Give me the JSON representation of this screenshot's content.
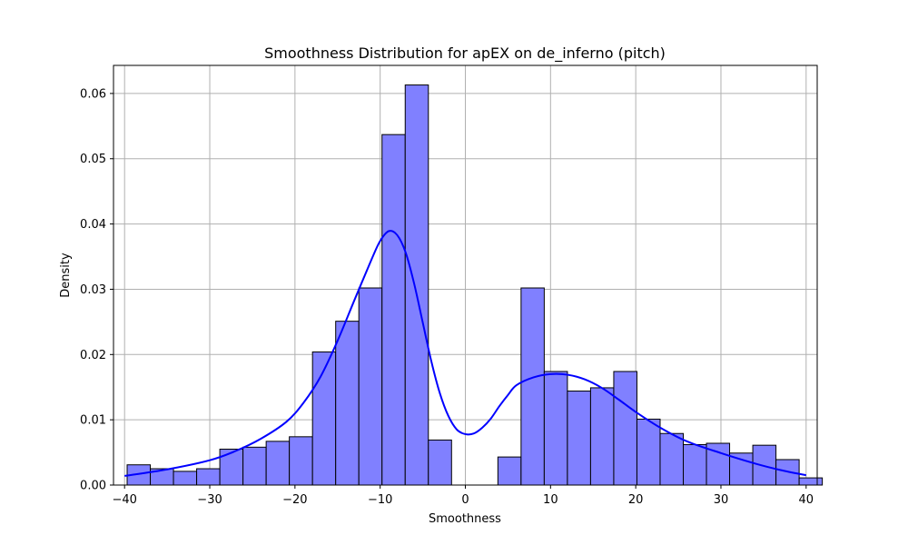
{
  "chart_data": {
    "type": "bar",
    "title": "Smoothness Distribution for apEX on de_inferno (pitch)",
    "xlabel": "Smoothness",
    "ylabel": "Density",
    "xlim": [
      -41.3,
      41.3
    ],
    "ylim": [
      0,
      0.0643
    ],
    "grid": true,
    "x_ticks": [
      -40,
      -30,
      -20,
      -10,
      0,
      10,
      20,
      30,
      40
    ],
    "x_tick_labels": [
      "−40",
      "−30",
      "−20",
      "−10",
      "0",
      "10",
      "20",
      "30",
      "40"
    ],
    "y_ticks": [
      0,
      0.01,
      0.02,
      0.03,
      0.04,
      0.05,
      0.06
    ],
    "y_tick_labels": [
      "0.00",
      "0.01",
      "0.02",
      "0.03",
      "0.04",
      "0.05",
      "0.06"
    ],
    "colors": {
      "bar_fill": "#8080ff",
      "bar_edge": "#000000",
      "kde": "#0000ff",
      "grid": "#b0b0b0"
    },
    "histogram": {
      "bin_start": -39.7,
      "bin_width": 2.72,
      "densities": [
        0.0031,
        0.0025,
        0.0021,
        0.0025,
        0.0055,
        0.0058,
        0.0067,
        0.0074,
        0.0204,
        0.0251,
        0.0302,
        0.0537,
        0.0613,
        0.0069,
        0,
        0,
        0.0043,
        0.0302,
        0.0174,
        0.0144,
        0.0149,
        0.0174,
        0.0101,
        0.0079,
        0.0062,
        0.0064,
        0.0049,
        0.0061,
        0.0039,
        0.0011
      ]
    },
    "kde": {
      "x": [
        -40,
        -35,
        -30,
        -27,
        -24,
        -21,
        -19,
        -17,
        -15,
        -13,
        -11,
        -10,
        -9,
        -8,
        -7,
        -6,
        -5,
        -4,
        -3,
        -2,
        -1,
        0,
        1,
        2,
        3,
        4,
        5,
        6,
        8,
        10,
        12,
        14,
        16,
        18,
        20,
        23,
        26,
        30,
        34,
        37,
        40
      ],
      "y": [
        0.0014,
        0.0024,
        0.0038,
        0.0052,
        0.0071,
        0.0097,
        0.0126,
        0.0166,
        0.0221,
        0.0284,
        0.0346,
        0.0374,
        0.0389,
        0.0383,
        0.0356,
        0.0308,
        0.0249,
        0.019,
        0.0141,
        0.0106,
        0.0085,
        0.0078,
        0.0079,
        0.0088,
        0.0102,
        0.0121,
        0.0138,
        0.0153,
        0.0165,
        0.017,
        0.0169,
        0.0162,
        0.0149,
        0.0131,
        0.0112,
        0.0087,
        0.0067,
        0.0049,
        0.0033,
        0.0023,
        0.0015
      ]
    }
  }
}
